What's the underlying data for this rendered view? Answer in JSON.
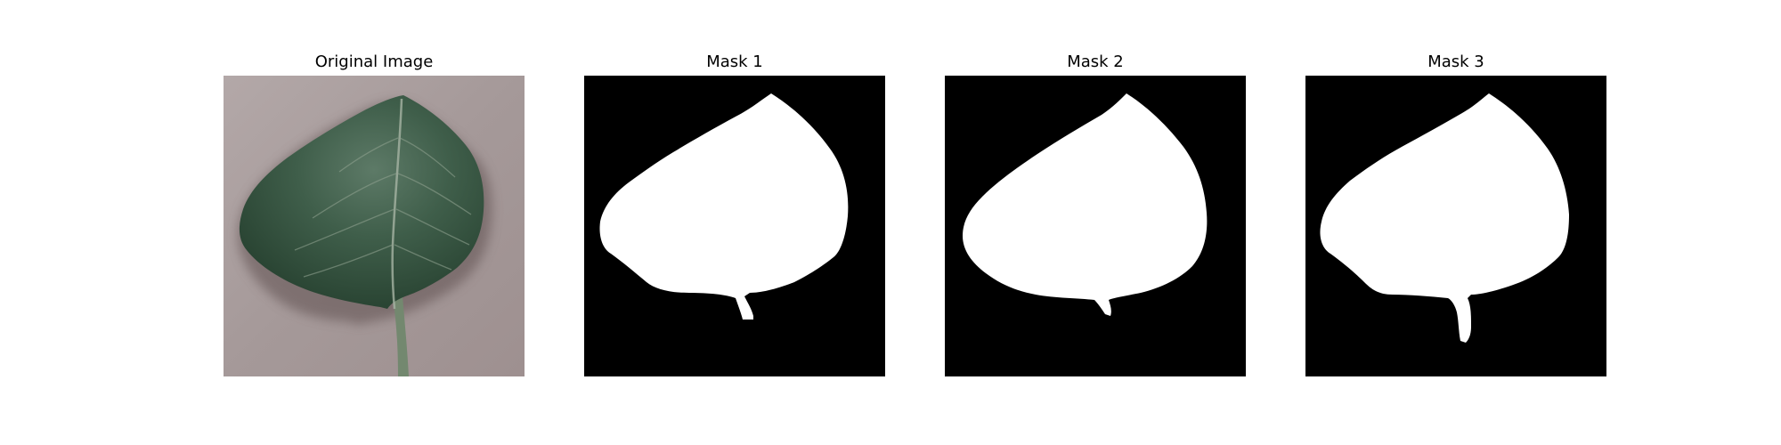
{
  "figure": {
    "panels": [
      {
        "title": "Original Image",
        "kind": "photo"
      },
      {
        "title": "Mask 1",
        "kind": "mask"
      },
      {
        "title": "Mask 2",
        "kind": "mask"
      },
      {
        "title": "Mask 3",
        "kind": "mask"
      }
    ]
  },
  "colors": {
    "photo_background": "#a89c9c",
    "leaf_dark": "#2f4a38",
    "leaf_mid": "#3e5c48",
    "leaf_light": "#5a7a66",
    "vein": "#9fae9f",
    "stem": "#6f8470",
    "mask_background": "#000000",
    "mask_foreground": "#ffffff"
  }
}
